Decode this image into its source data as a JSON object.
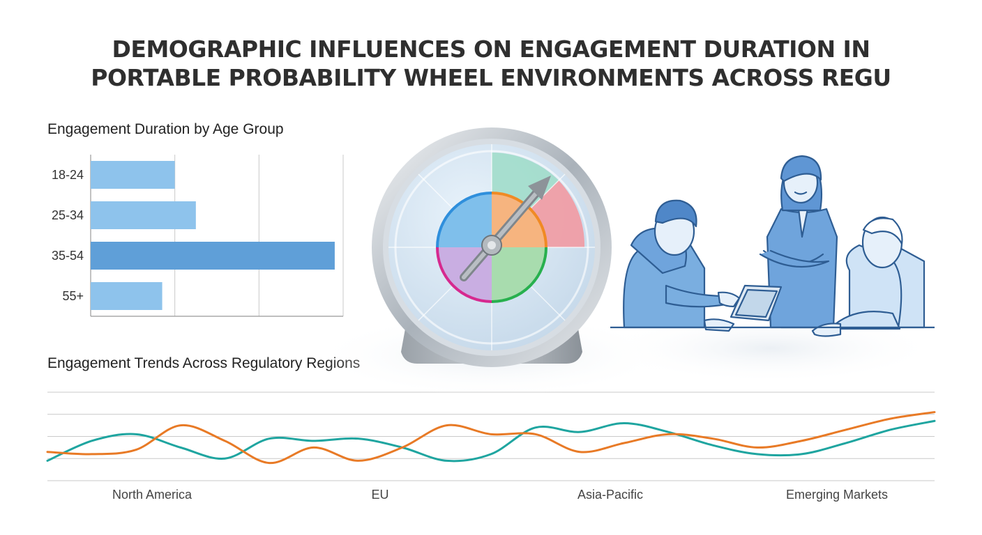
{
  "title": {
    "line1": "DEMOGRAPHIC INFLUENCES ON ENGAGEMENT DURATION IN",
    "line2": "PORTABLE PROBABILITY WHEEL ENVIRONMENTS ACROSS REGU"
  },
  "colors": {
    "bar_light": "#8ec3ec",
    "bar_highlight": "#5f9fd8",
    "series_teal": "#1fa5a0",
    "series_orange": "#e87a26",
    "grid": "#c9c9c9"
  },
  "chart_data": [
    {
      "type": "bar",
      "orientation": "horizontal",
      "title": "Engagement Duration by Age Group",
      "categories": [
        "18-24",
        "25-34",
        "35-54",
        "55+"
      ],
      "values": [
        1.0,
        1.25,
        2.9,
        0.85
      ],
      "highlight": "35-54",
      "xlim": [
        0,
        3
      ],
      "grid": true
    },
    {
      "type": "line",
      "title": "Engagement Trends Across Regulatory Regions",
      "x_labels": [
        "North America",
        "EU",
        "Asia-Pacific",
        "Emerging Markets"
      ],
      "x": [
        0,
        1,
        2,
        3,
        4,
        5,
        6,
        7,
        8,
        9,
        10,
        11,
        12,
        13,
        14,
        15,
        16,
        17,
        18,
        19,
        20
      ],
      "ylim": [
        0,
        4
      ],
      "grid": true,
      "series": [
        {
          "color": "teal",
          "values": [
            0.9,
            1.8,
            2.1,
            1.5,
            1.0,
            1.9,
            1.8,
            1.9,
            1.5,
            0.9,
            1.2,
            2.4,
            2.2,
            2.6,
            2.2,
            1.6,
            1.2,
            1.2,
            1.7,
            2.3,
            2.7
          ]
        },
        {
          "color": "orange",
          "values": [
            1.3,
            1.2,
            1.4,
            2.5,
            1.8,
            0.8,
            1.5,
            0.9,
            1.5,
            2.5,
            2.1,
            2.1,
            1.3,
            1.7,
            2.1,
            1.9,
            1.5,
            1.8,
            2.3,
            2.8,
            3.1
          ]
        }
      ]
    }
  ],
  "illustration": {
    "gauge": "probability-wheel-gauge-icon",
    "people": "team-with-tablet-illustration"
  }
}
